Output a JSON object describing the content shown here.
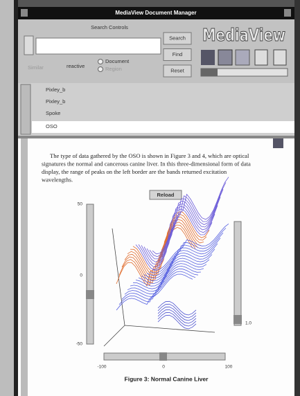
{
  "window": {
    "title": "MediaView Document Manager"
  },
  "search": {
    "label": "Search Controls",
    "similar": "Similar",
    "reactive": "reactive",
    "options": [
      "Document",
      "Region"
    ],
    "buttons": [
      "Search",
      "Find",
      "Reset"
    ]
  },
  "logo": "MediaView",
  "list": {
    "items": [
      "Pixley_b",
      "Pixley_b",
      "Spoke",
      "OSO"
    ]
  },
  "document": {
    "paragraph": [
      "The type of data gathered by the OSO is shown in Figure 3 and 4, which are optical",
      "signatures the normal and cancerous canine liver. In this three-dimensional form of data",
      "display, the range of peaks on the left border are the bands returned excitation",
      "wavelengths."
    ],
    "button": "Reload",
    "left_slider_labels": [
      "50",
      "0",
      "-50"
    ],
    "right_slider_label": "1.0",
    "bottom_slider_labels": [
      "-100",
      "0",
      "100"
    ],
    "caption": "Figure 3: Normal Canine Liver"
  }
}
